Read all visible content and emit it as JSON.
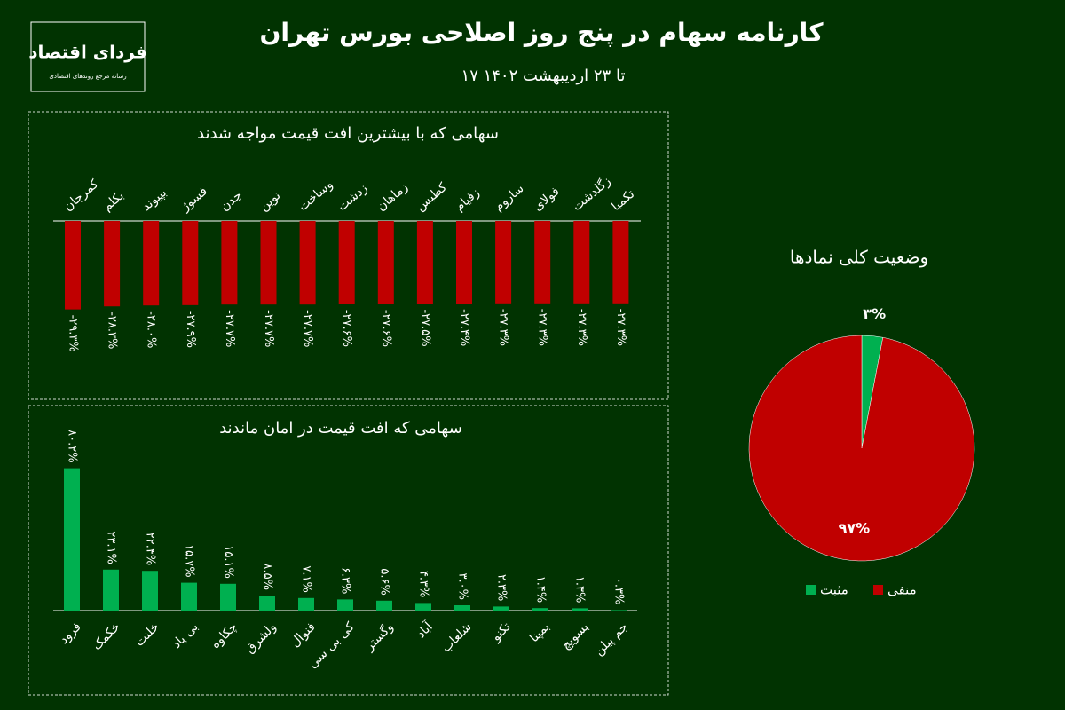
{
  "header": {
    "title": "کارنامه سهام در پنج روز اصلاحی بورس تهران",
    "subtitle": "۱۷ تا ۲۳ اردیبهشت ۱۴۰۲",
    "logo_name": "فردای اقتصاد",
    "logo_tagline": "رسانه مرجع روندهای اقتصادی"
  },
  "chart_data": [
    {
      "type": "bar",
      "title": "سهامی که با بیشترین افت قیمت مواجه شدند",
      "categories": [
        "کمرجان",
        "بکلم",
        "بپیوند",
        "فسوژ",
        "چدن",
        "نوین",
        "وساخت",
        "زدشت",
        "زماهان",
        "کطبس",
        "زقیام",
        "ساروم",
        "فولای",
        "زگلدشت",
        "تکمبا"
      ],
      "values": [
        -29.3,
        -28.3,
        -28.0,
        -27.9,
        -27.7,
        -27.7,
        -27.7,
        -27.6,
        -27.6,
        -27.5,
        -27.4,
        -27.3,
        -27.3,
        -27.3,
        -27.3
      ],
      "value_labels": [
        "-۲۹.۳%",
        "-۲۸.۳%",
        "-۲۸.۰%",
        "-۲۷.۹%",
        "-۲۷.۷%",
        "-۲۷.۷%",
        "-۲۷.۷%",
        "-۲۷.۶%",
        "-۲۷.۶%",
        "-۲۷.۵%",
        "-۲۷.۴%",
        "-۲۷.۳%",
        "-۲۷.۳%",
        "-۲۷.۳%",
        "-۲۷.۳%"
      ],
      "color": "#c00000",
      "ylim": [
        -30,
        0
      ]
    },
    {
      "type": "bar",
      "title": "سهامی که افت قیمت در امان ماندند",
      "categories": [
        "فرود",
        "خکمک",
        "خلنت",
        "بی پاد",
        "چکاوه",
        "ولشرق",
        "فنوال",
        "کی بی سی",
        "وگستر",
        "آباد",
        "شلعاب",
        "تکنو",
        "بمپنا",
        "بسویچ",
        "جم پیلن"
      ],
      "values": [
        80.2,
        23.1,
        22.4,
        15.7,
        15.1,
        8.5,
        7.1,
        6.3,
        5.6,
        4.3,
        3.0,
        2.3,
        1.4,
        1.3,
        0.3
      ],
      "value_labels": [
        "۸۰.۲%",
        "۲۳.۱%",
        "۲۲.۴%",
        "۱۵.۷%",
        "۱۵.۱%",
        "۸.۵%",
        "۷.۱%",
        "۶.۳%",
        "۵.۶%",
        "۴.۳%",
        "۳.۰%",
        "۲.۳%",
        "۱.۴%",
        "۱.۳%",
        "۰.۳%"
      ],
      "color": "#00b050",
      "ylim": [
        0,
        84
      ]
    },
    {
      "type": "pie",
      "title": "وضعیت کلی نمادها",
      "categories": [
        "مثبت",
        "منفی"
      ],
      "values": [
        3,
        97
      ],
      "value_labels": [
        "۳%",
        "۹۷%"
      ],
      "colors": [
        "#00b050",
        "#c00000"
      ]
    }
  ]
}
